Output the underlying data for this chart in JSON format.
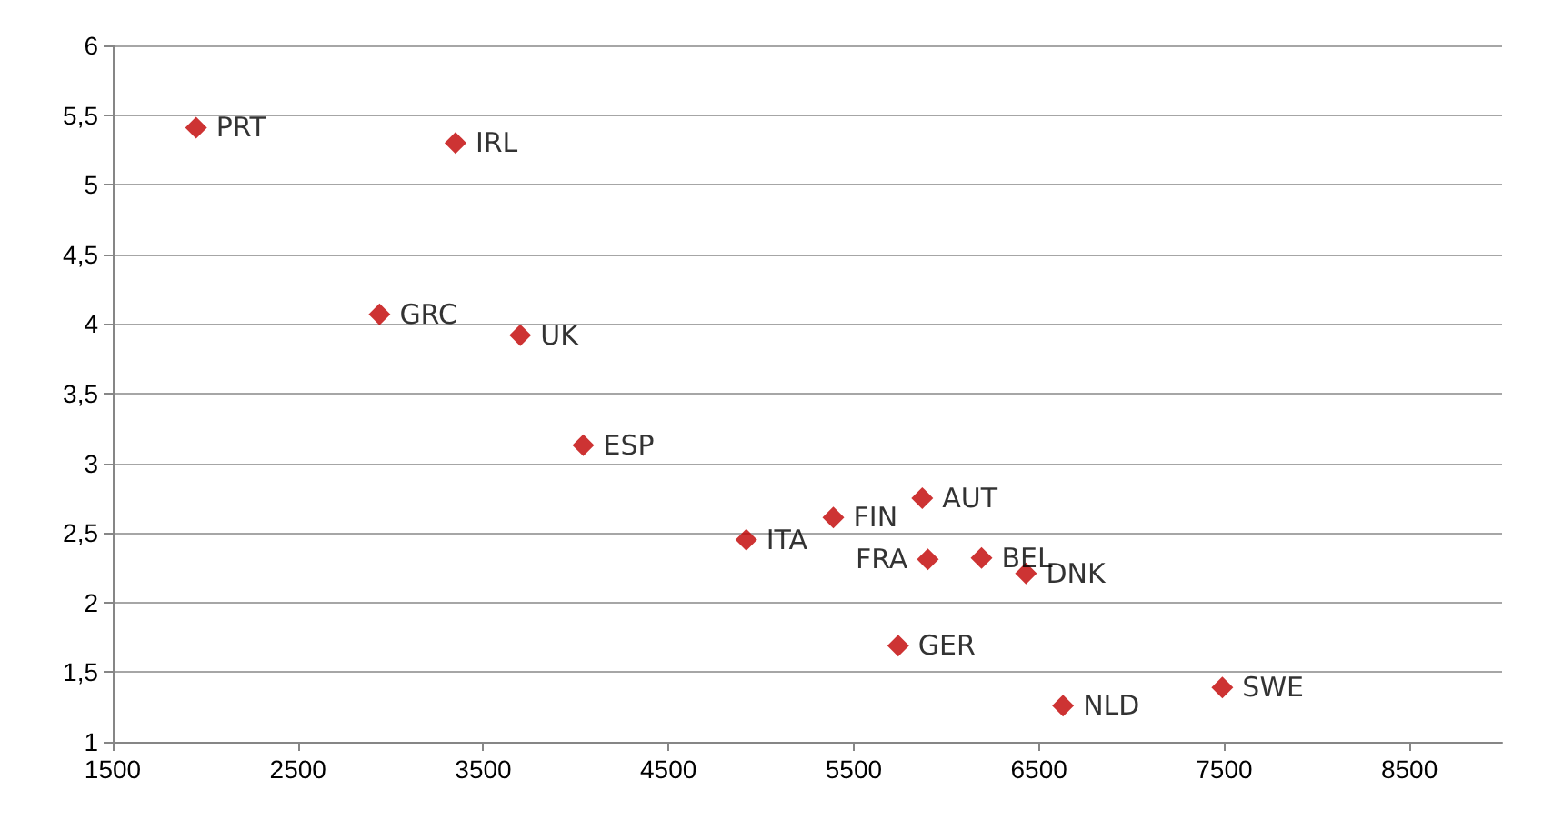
{
  "chart_data": {
    "type": "scatter",
    "marker": "diamond",
    "grid": "y",
    "legend": false,
    "xlim": [
      1500,
      9000
    ],
    "xticks": [
      1500,
      2500,
      3500,
      4500,
      5500,
      6500,
      7500,
      8500
    ],
    "ylim": [
      1,
      6
    ],
    "yticks": [
      1,
      {
        "value": 1.5,
        "label": "1,5"
      },
      2,
      {
        "value": 2.5,
        "label": "2,5"
      },
      3,
      {
        "value": 3.5,
        "label": "3,5"
      },
      4,
      {
        "value": 4.5,
        "label": "4,5"
      },
      5,
      {
        "value": 5.5,
        "label": "5,5"
      },
      6
    ],
    "series": [
      {
        "name": "PRT",
        "color": "#c00000",
        "x": [
          1950
        ],
        "values": [
          5.41
        ]
      },
      {
        "name": "IRL",
        "color": "#c00000",
        "x": [
          3350
        ],
        "values": [
          5.3
        ]
      },
      {
        "name": "GRC",
        "color": "#c00000",
        "x": [
          2940
        ],
        "values": [
          4.07
        ]
      },
      {
        "name": "UK",
        "color": "#c00000",
        "x": [
          3700
        ],
        "values": [
          3.92
        ]
      },
      {
        "name": "ESP",
        "color": "#c00000",
        "x": [
          4040
        ],
        "values": [
          3.13
        ]
      },
      {
        "name": "ITA",
        "color": "#c00000",
        "x": [
          4920
        ],
        "values": [
          2.45
        ]
      },
      {
        "name": "FIN",
        "color": "#c00000",
        "x": [
          5390
        ],
        "values": [
          2.61
        ]
      },
      {
        "name": "AUT",
        "color": "#c00000",
        "x": [
          5870
        ],
        "values": [
          2.75
        ]
      },
      {
        "name": "FRA",
        "color": "#c00000",
        "x": [
          5900
        ],
        "values": [
          2.31
        ]
      },
      {
        "name": "BEL",
        "color": "#c00000",
        "x": [
          6190
        ],
        "values": [
          2.32
        ]
      },
      {
        "name": "DNK",
        "color": "#c00000",
        "x": [
          6430
        ],
        "values": [
          2.21
        ]
      },
      {
        "name": "GER",
        "color": "#c00000",
        "x": [
          5740
        ],
        "values": [
          1.69
        ]
      },
      {
        "name": "NLD",
        "color": "#c00000",
        "x": [
          6630
        ],
        "values": [
          1.26
        ]
      },
      {
        "name": "SWE",
        "color": "#c00000",
        "x": [
          7490
        ],
        "values": [
          1.39
        ]
      }
    ]
  }
}
